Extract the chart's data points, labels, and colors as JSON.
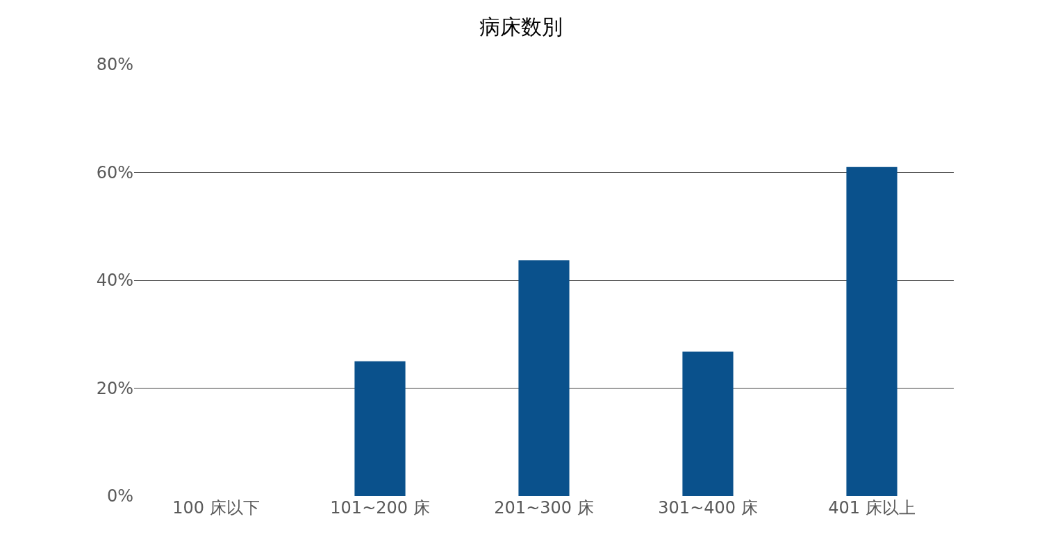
{
  "chart_data": {
    "type": "bar",
    "title": "病床数別",
    "categories": [
      "100 床以下",
      "101~200 床",
      "201~300 床",
      "301~400 床",
      "401 床以上"
    ],
    "values": [
      0,
      25,
      43.7,
      26.8,
      61.0
    ],
    "color": "#0a518c",
    "ylim": [
      0,
      80
    ],
    "yticks": [
      {
        "value": 0,
        "label": "0%"
      },
      {
        "value": 20,
        "label": "20%"
      },
      {
        "value": 40,
        "label": "40%"
      },
      {
        "value": 60,
        "label": "60%"
      },
      {
        "value": 80,
        "label": "80%"
      }
    ],
    "grid": "y",
    "legend": false
  }
}
